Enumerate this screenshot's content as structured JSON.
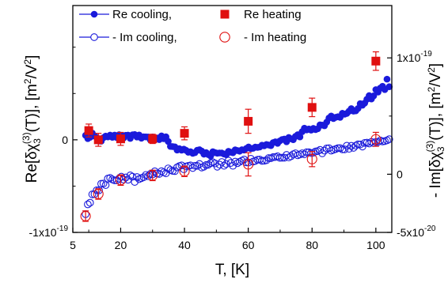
{
  "chart_data": {
    "type": "scatter",
    "xlabel": "T, [K]",
    "ylabel_left": {
      "prefix": "Re[δχ",
      "sub": "3",
      "sup": "(3)",
      "mid": "(T)], [m",
      "sup2": "2",
      "end": "/V",
      "sup3": "2",
      "close": "]"
    },
    "ylabel_right": {
      "prefix": "- Im[δχ",
      "sub": "3",
      "sup": "(3)",
      "mid": "(T)], [m",
      "sup2": "2",
      "end": "/V",
      "sup3": "2",
      "close": "]"
    },
    "xlim": [
      5,
      105
    ],
    "xticks": [
      {
        "value": 5,
        "label": "5"
      },
      {
        "value": 20,
        "label": "20"
      },
      {
        "value": 40,
        "label": "40"
      },
      {
        "value": 60,
        "label": "60"
      },
      {
        "value": 80,
        "label": "80"
      },
      {
        "value": 100,
        "label": "100"
      }
    ],
    "ylim_left": [
      -1e-19,
      1.45e-19
    ],
    "yticks_left": [
      {
        "value": 0,
        "label": "0"
      },
      {
        "value": -1e-19,
        "label": "-1x10",
        "exp": "-19"
      }
    ],
    "ylim_right": [
      -5e-20,
      1.45e-19
    ],
    "yticks_right": [
      {
        "value": 1e-19,
        "label": "1x10",
        "exp": "-19"
      },
      {
        "value": 0,
        "label": "0"
      },
      {
        "value": -5e-20,
        "label": "-5x10",
        "exp": "-20"
      }
    ],
    "legend": {
      "placement": "top-left",
      "entries": [
        {
          "label": "Re cooling,",
          "marker": "filled-circle-line",
          "color": "#1a1adb"
        },
        {
          "label": "- Im cooling,",
          "marker": "open-circle-line",
          "color": "#1a1adb"
        },
        {
          "label": "Re heating",
          "marker": "filled-square",
          "color": "#e01010"
        },
        {
          "label": "- Im heating",
          "marker": "open-circle",
          "color": "#e01010"
        }
      ]
    },
    "colors": {
      "blue": "#1a1adb",
      "red": "#e01010"
    },
    "series": [
      {
        "axis": "left",
        "marker": "filled-circle",
        "color": "#1a1adb",
        "x": [
          9.0,
          9.7,
          10.4,
          11.1,
          11.8,
          12.5,
          13.2,
          13.9,
          14.6,
          15.3,
          16.0,
          16.7,
          17.4,
          18.1,
          18.8,
          19.5,
          20.2,
          20.9,
          21.6,
          22.3,
          23.0,
          23.7,
          24.4,
          25.1,
          25.8,
          26.5,
          27.2,
          27.9,
          28.6,
          29.3,
          30.0,
          30.7,
          31.4,
          32.1,
          32.8,
          33.5,
          34.2,
          34.9,
          35.6,
          36.3,
          37.0,
          37.7,
          38.4,
          39.1,
          39.8,
          40.5,
          41.2,
          41.9,
          42.6,
          43.3,
          44.0,
          44.7,
          45.4,
          46.1,
          46.8,
          47.5,
          48.2,
          48.9,
          49.6,
          50.3,
          51.0,
          51.7,
          52.4,
          53.1,
          53.8,
          54.5,
          55.2,
          55.9,
          56.6,
          57.3,
          58.0,
          58.7,
          59.4,
          60.1,
          60.8,
          61.5,
          62.2,
          62.9,
          63.6,
          64.3,
          65.0,
          65.7,
          66.4,
          67.1,
          67.8,
          68.5,
          69.2,
          69.9,
          70.6,
          71.3,
          72.0,
          72.7,
          73.4,
          74.1,
          74.8,
          75.5,
          76.2,
          76.9,
          77.6,
          78.3,
          79.0,
          79.7,
          80.4,
          81.1,
          81.8,
          82.5,
          83.2,
          83.9,
          84.6,
          85.3,
          86.0,
          86.7,
          87.4,
          88.1,
          88.8,
          89.5,
          90.2,
          90.9,
          91.6,
          92.3,
          93.0,
          93.7,
          94.4,
          95.1,
          95.8,
          96.5,
          97.2,
          97.9,
          98.6,
          99.3,
          100.0,
          100.7,
          101.4,
          102.1,
          102.8,
          103.5,
          104.2
        ],
        "y": [
          4.8e-21,
          1.3e-21,
          2.7e-21,
          7.2e-21,
          4e-21,
          2.5e-21,
          -1.4e-21,
          -1.5e-21,
          2.3e-21,
          4e-21,
          3.1e-21,
          5.1e-21,
          2.7e-21,
          5.1e-21,
          2.4e-21,
          5.5e-21,
          4.8e-21,
          1.8e-21,
          4.9e-21,
          5.1e-21,
          1.5e-21,
          5.4e-21,
          5.7e-21,
          3e-21,
          5.2e-21,
          1.7e-21,
          3.3e-21,
          3.1e-21,
          3e-21,
          -7e-23,
          3e-21,
          1.9e-21,
          2e-21,
          2e-22,
          4.2e-21,
          1.2e-21,
          3.2e-21,
          -1.8e-21,
          -7.1e-21,
          -7.3e-21,
          -7.6e-21,
          -1.11e-20,
          -9.6e-21,
          -1.12e-20,
          -1.01e-20,
          -1.14e-20,
          -1.34e-20,
          -1.29e-20,
          -1.46e-20,
          -1.38e-20,
          -1.13e-20,
          -1.07e-20,
          -1.21e-20,
          -1.55e-20,
          -1.38e-20,
          -1.6e-20,
          -1.75e-20,
          -1.29e-20,
          -1.38e-20,
          -1.45e-20,
          -1.42e-20,
          -1.43e-20,
          -1.53e-20,
          -1.61e-20,
          -1.24e-20,
          -1.34e-20,
          -1.4e-20,
          -1.08e-20,
          -1.16e-20,
          -1.23e-20,
          -1.07e-20,
          -1.11e-20,
          -9.3e-21,
          -7.7e-21,
          -9.5e-21,
          -9.2e-21,
          -7.9e-21,
          -8.2e-21,
          -7.8e-21,
          -5.8e-21,
          -6.5e-21,
          -5.1e-21,
          -5.6e-21,
          -6.3e-21,
          -3e-21,
          -2.2e-21,
          -3.8e-21,
          -1.2e-21,
          3e-22,
          8e-22,
          -2.1e-21,
          2.5e-21,
          1.1e-21,
          1e-22,
          3.7e-21,
          5.5e-21,
          3.1e-21,
          8.8e-21,
          1.25e-20,
          1.07e-20,
          1.17e-20,
          1.05e-20,
          1.23e-20,
          1.1e-20,
          1.2e-20,
          1.62e-20,
          1.58e-20,
          1.52e-20,
          1.91e-20,
          2.35e-20,
          2.57e-20,
          2.3e-20,
          2.43e-20,
          2.49e-20,
          2.42e-20,
          2.86e-20,
          2.77e-20,
          2.85e-20,
          3.09e-20,
          3.37e-20,
          3.1e-20,
          3.13e-20,
          3.38e-20,
          3.9e-20,
          3.74e-20,
          3.96e-20,
          4.38e-20,
          4.77e-20,
          4.41e-20,
          4.74e-20,
          5.42e-20,
          5.16e-20,
          5.59e-20,
          5.78e-20,
          5.42e-20,
          6.55e-20,
          5.73e-20
        ]
      },
      {
        "axis": "left",
        "marker": "filled-square",
        "color": "#e01010",
        "x": [
          10.0,
          13.0,
          20.0,
          30.0,
          40.0,
          60.0,
          80.0,
          100.0
        ],
        "y": [
          1e-20,
          0.0,
          1e-21,
          1e-21,
          7e-21,
          2e-20,
          3.5e-20,
          8.5e-20
        ],
        "err": [
          7e-21,
          7e-21,
          7e-21,
          5e-21,
          7e-21,
          1.3e-20,
          1e-20,
          1e-20
        ]
      },
      {
        "axis": "right",
        "marker": "open-circle",
        "color": "#1a1adb",
        "x": [
          9.0,
          9.7,
          10.4,
          11.1,
          11.8,
          12.5,
          13.2,
          13.9,
          14.6,
          15.3,
          16.0,
          16.7,
          17.4,
          18.1,
          18.8,
          19.5,
          20.2,
          20.9,
          21.6,
          22.3,
          23.0,
          23.7,
          24.4,
          25.1,
          25.8,
          26.5,
          27.2,
          27.9,
          28.6,
          29.3,
          30.0,
          30.7,
          31.4,
          32.1,
          32.8,
          33.5,
          34.2,
          34.9,
          35.6,
          36.3,
          37.0,
          37.7,
          38.4,
          39.1,
          39.8,
          40.5,
          41.2,
          41.9,
          42.6,
          43.3,
          44.0,
          44.7,
          45.4,
          46.1,
          46.8,
          47.5,
          48.2,
          48.9,
          49.6,
          50.3,
          51.0,
          51.7,
          52.4,
          53.1,
          53.8,
          54.5,
          55.2,
          55.9,
          56.6,
          57.3,
          58.0,
          58.7,
          59.4,
          60.1,
          60.8,
          61.5,
          62.2,
          62.9,
          63.6,
          64.3,
          65.0,
          65.7,
          66.4,
          67.1,
          67.8,
          68.5,
          69.2,
          69.9,
          70.6,
          71.3,
          72.0,
          72.7,
          73.4,
          74.1,
          74.8,
          75.5,
          76.2,
          76.9,
          77.6,
          78.3,
          79.0,
          79.7,
          80.4,
          81.1,
          81.8,
          82.5,
          83.2,
          83.9,
          84.6,
          85.3,
          86.0,
          86.7,
          87.4,
          88.1,
          88.8,
          89.5,
          90.2,
          90.9,
          91.6,
          92.3,
          93.0,
          93.7,
          94.4,
          95.1,
          95.8,
          96.5,
          97.2,
          97.9,
          98.6,
          99.3,
          100.0,
          100.7,
          101.4,
          102.1,
          102.8,
          103.5,
          104.2
        ],
        "y": [
          -3.43e-20,
          -2.59e-20,
          -2.45e-20,
          -1.73e-20,
          -1.71e-20,
          -1.38e-20,
          -1.38e-20,
          -8.2e-21,
          -8e-21,
          -9.3e-21,
          -3.7e-21,
          -3.2e-21,
          -4.5e-21,
          -5.3e-21,
          -5.3e-21,
          -3.7e-21,
          -2.1e-21,
          -4.5e-21,
          -2.8e-21,
          -4.7e-21,
          -1e-21,
          -2.1e-21,
          -6.6e-21,
          -2.4e-21,
          -4.2e-21,
          -3.3e-21,
          -2.6e-21,
          -6e-22,
          -1.6e-21,
          2e-22,
          -2e-22,
          2.5e-21,
          6e-22,
          3e-22,
          2.6e-21,
          1.6e-21,
          8e-22,
          5e-21,
          3.7e-21,
          2.9e-21,
          2.7e-21,
          5.9e-21,
          7e-21,
          7.6e-21,
          4.3e-21,
          6.7e-21,
          7.2e-21,
          7.6e-21,
          5.4e-21,
          7.3e-21,
          7.2e-21,
          8.8e-21,
          5.8e-21,
          6.5e-21,
          7.9e-21,
          8.2e-21,
          9.6e-21,
          1.03e-20,
          9.3e-21,
          6.5e-21,
          8.3e-21,
          1.05e-20,
          7.3e-21,
          8.8e-21,
          1.17e-20,
          9.7e-21,
          7.3e-21,
          1.08e-20,
          9.5e-21,
          1.07e-20,
          1.17e-20,
          1.26e-20,
          1.02e-20,
          1.01e-20,
          1.33e-20,
          1.09e-20,
          1.14e-20,
          1.24e-20,
          1.26e-20,
          1.15e-20,
          1.16e-20,
          1.2e-20,
          1.39e-20,
          1.38e-20,
          1.47e-20,
          1.48e-20,
          1.54e-20,
          1.41e-20,
          1.42e-20,
          1.42e-20,
          1.66e-20,
          1.45e-20,
          1.54e-20,
          1.72e-20,
          1.8e-20,
          1.63e-20,
          1.7e-20,
          1.8e-20,
          1.71e-20,
          1.89e-20,
          1.89e-20,
          1.82e-20,
          1.85e-20,
          1.96e-20,
          1.99e-20,
          2.09e-20,
          1.8e-20,
          2.03e-20,
          2.22e-20,
          2.24e-20,
          2.03e-20,
          2.1e-20,
          2.16e-20,
          2.24e-20,
          2.25e-20,
          2.14e-20,
          2.14e-20,
          2.45e-20,
          2.19e-20,
          2.44e-20,
          2.27e-20,
          2.46e-20,
          2.57e-20,
          2.56e-20,
          2.38e-20,
          2.69e-20,
          2.71e-20,
          2.64e-20,
          2.78e-20,
          2.68e-20,
          2.77e-20,
          2.78e-20,
          2.9e-20,
          2.82e-20,
          2.85e-20,
          2.91e-20,
          3.01e-20
        ]
      },
      {
        "axis": "right",
        "marker": "open-circle",
        "color": "#e01010",
        "x": [
          9.0,
          13.0,
          20.0,
          30.0,
          40.0,
          60.0,
          80.0,
          100.0
        ],
        "y": [
          -3.6e-20,
          -1.7e-20,
          -5e-21,
          -1e-21,
          2.5e-21,
          8.5e-21,
          1.3e-20,
          3e-20
        ],
        "err": [
          4.5e-21,
          4.5e-21,
          4.5e-21,
          4.5e-21,
          4.5e-21,
          1e-20,
          6.5e-21,
          6e-21
        ]
      }
    ]
  }
}
